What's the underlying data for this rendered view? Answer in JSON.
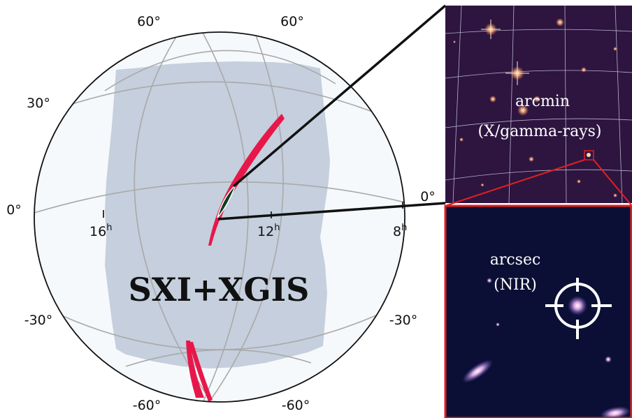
{
  "globe": {
    "lat_labels": {
      "top_left": "60°",
      "top_right": "60°",
      "mid_left": "30°",
      "eq_left": "0°",
      "eq_right": "0°",
      "low_left": "-30°",
      "low_right": "-30°",
      "bottom_left": "-60°",
      "bottom_right": "-60°"
    },
    "ra_labels": [
      {
        "value": "16",
        "unit": "h"
      },
      {
        "value": "12",
        "unit": "h"
      },
      {
        "value": "8",
        "unit": "h"
      }
    ],
    "coverage_label": "SXI+XGIS"
  },
  "panels": {
    "top": {
      "line1": "arcmin",
      "line2": "(X/gamma-rays)"
    },
    "bottom": {
      "line1": "arcsec",
      "line2": "(NIR)"
    }
  },
  "colors": {
    "coverage": "#c5cfdd",
    "sky_bg": "#f6f9fc",
    "contour": "#e8174a",
    "localization": "#0f3d1f",
    "top_panel_bg": "#2d1540",
    "bottom_panel_bg": "#0b0f35",
    "zoom_box": "#e0201f"
  }
}
